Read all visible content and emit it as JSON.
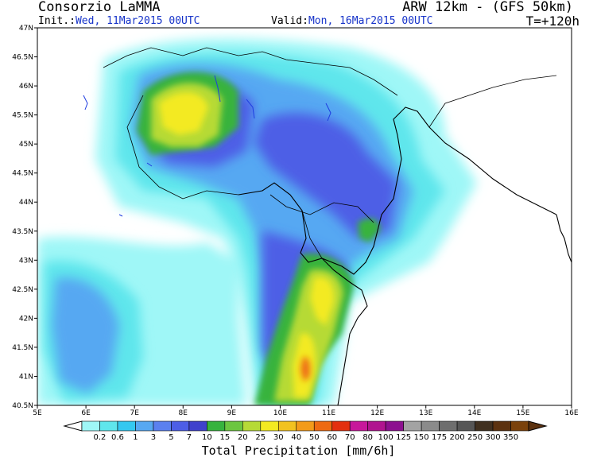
{
  "header": {
    "producer": "Consorzio LaMMA",
    "model": "ARW 12km - (GFS 50km)",
    "init_label": "Init.:",
    "init_value": "Wed, 11Mar2015 00UTC",
    "valid_label": "Valid:",
    "valid_value": "Mon, 16Mar2015 00UTC",
    "forecast_step": "T=+120h"
  },
  "map": {
    "lon_ticks": [
      "5E",
      "6E",
      "7E",
      "8E",
      "9E",
      "10E",
      "11E",
      "12E",
      "13E",
      "14E",
      "15E",
      "16E"
    ],
    "lat_ticks": [
      "40.5N",
      "41N",
      "41.5N",
      "42N",
      "42.5N",
      "43N",
      "43.5N",
      "44N",
      "44.5N",
      "45N",
      "45.5N",
      "46N",
      "46.5N",
      "47N"
    ],
    "background_color": "#ffffff",
    "coast_color": "#000000",
    "lake_color": "#1e3ce0"
  },
  "legend": {
    "title": "Total Precipitation [mm/6h]",
    "labels": [
      "0.2",
      "0.6",
      "1",
      "3",
      "5",
      "7",
      "10",
      "15",
      "20",
      "25",
      "30",
      "40",
      "50",
      "60",
      "70",
      "80",
      "100",
      "125",
      "150",
      "175",
      "200",
      "250",
      "300",
      "350"
    ],
    "colors": [
      "#9ff7f7",
      "#5fe6ec",
      "#35c8f0",
      "#57a8f2",
      "#5b80ef",
      "#4d5ee6",
      "#3f41cc",
      "#37b33e",
      "#6cc640",
      "#b6da36",
      "#f3ea22",
      "#f2c21f",
      "#f39b1a",
      "#ee6a12",
      "#e3300f",
      "#c7189b",
      "#b0148f",
      "#8c108f",
      "#a3a3a3",
      "#8b8b8b",
      "#6e6e6e",
      "#565656",
      "#403020",
      "#5c3210",
      "#7a420c"
    ]
  }
}
